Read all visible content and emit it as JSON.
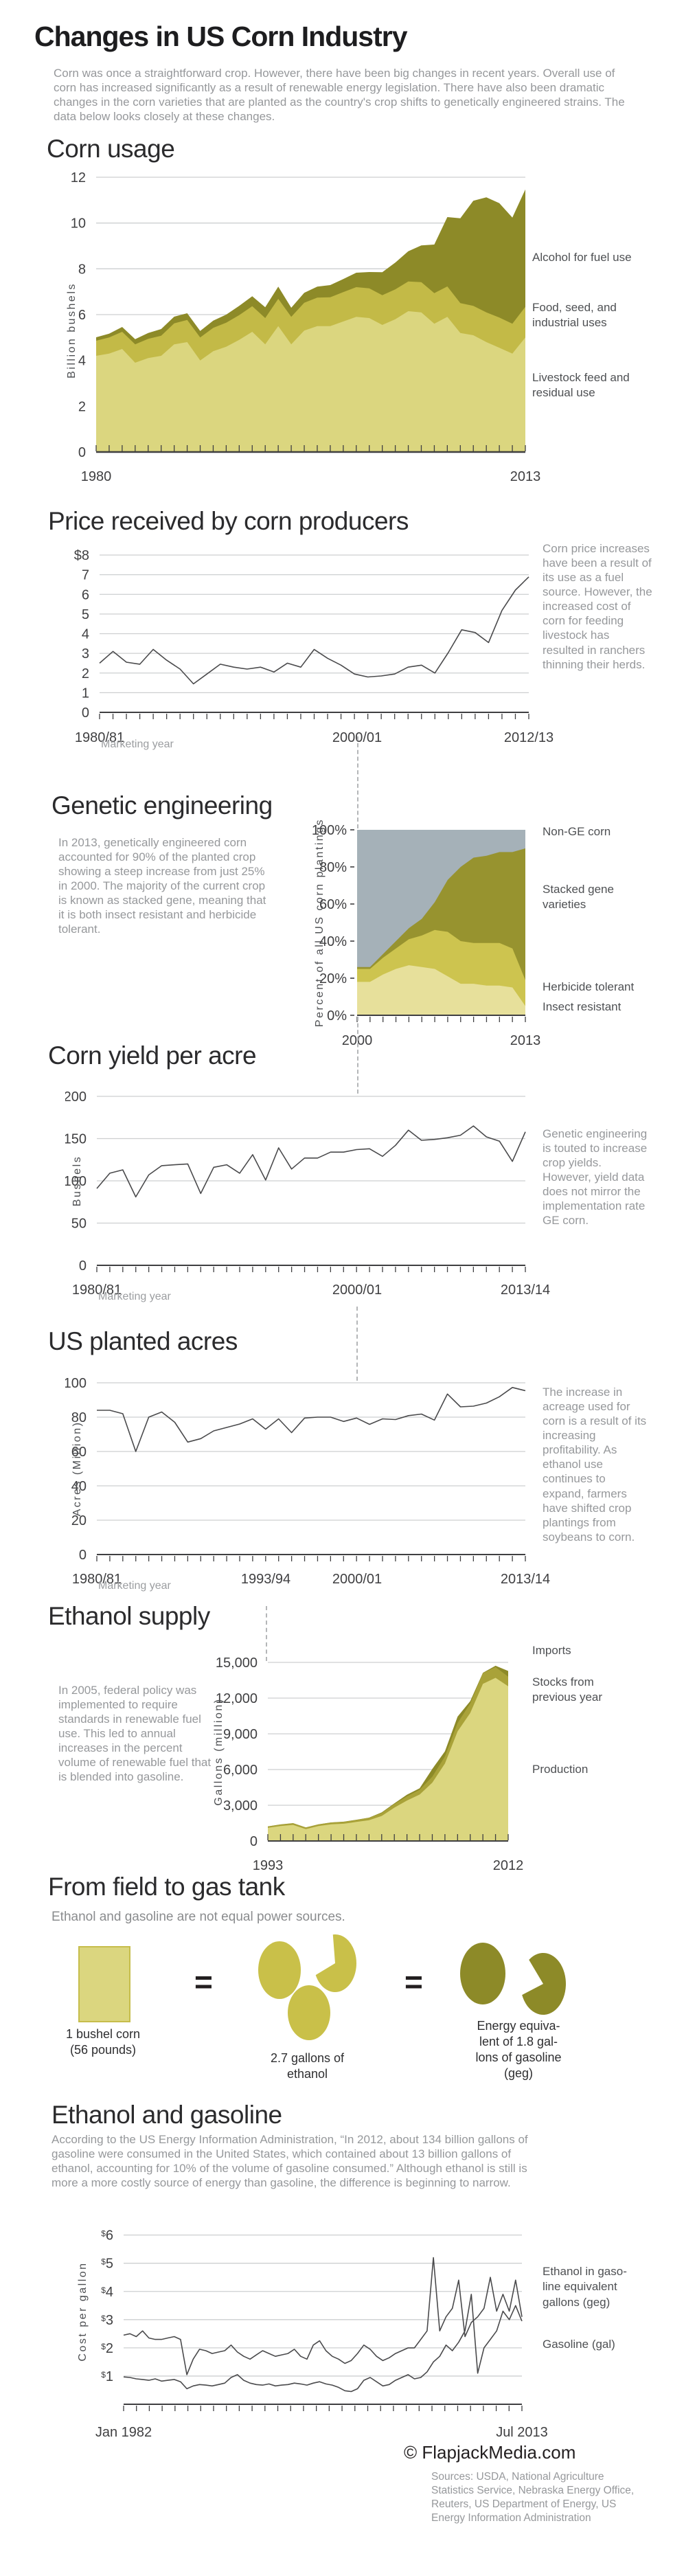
{
  "page": {
    "title": "Changes in US Corn Industry",
    "intro": "Corn was once a straightforward crop. However, there have been big changes in recent years. Overall use of corn has increased significantly as a result of renewable energy legislation. There have also been dramatic changes in the corn varieties that are planted as the country's crop shifts to genetically engineered strains. The data below looks closely at these changes."
  },
  "colors": {
    "olive_dark": "#8d8a28",
    "olive_mid": "#c3ba47",
    "olive_light": "#dbd67f",
    "ge_light": "#e7e09b",
    "ge_mid": "#cdc44f",
    "ge_dark": "#97932f",
    "non_ge_blue": "#a5b1b8",
    "line": "#414042",
    "grid": "#cdcfd0",
    "text_gray": "#96989b",
    "text_dark": "#2b2b2d"
  },
  "sections": {
    "usage": {
      "heading": "Corn usage",
      "legend_alcohol": "Alcohol for fuel use",
      "legend_food": "Food, seed, and\nindustrial uses",
      "legend_livestock": "Livestock feed and\nresidual use"
    },
    "price": {
      "heading": "Price received by corn producers",
      "note": "Corn price increases have been a result of its use as a fuel source. However, the increased cost of corn for feeding livestock has resulted in ranchers thinning their herds."
    },
    "ge": {
      "heading": "Genetic engineering",
      "note": "In 2013, genetically engineered corn accounted for 90% of the planted crop showing a steep increase from just 25% in 2000. The majority of the current crop is known as stacked gene, meaning that it is both insect resistant and herbicide tolerant.",
      "legend_non_ge": "Non-GE corn",
      "legend_stacked": "Stacked gene\nvarieties",
      "legend_herbicide": "Herbicide tolerant",
      "legend_insect": "Insect resistant"
    },
    "yield": {
      "heading": "Corn yield per acre",
      "note": "Genetic engineering is touted to increase crop yields. However, yield data does not mirror the implementation rate GE corn."
    },
    "acres": {
      "heading": "US planted acres",
      "note": "The increase in acreage used for corn is a result of its increasing profitability. As ethanol use continues to expand, farmers have shifted crop plantings from soybeans to corn."
    },
    "ethanol": {
      "heading": "Ethanol supply",
      "note": "In 2005, federal policy was implemented to require standards in renewable fuel use. This led to annual increases in the percent volume of renewable fuel that is blended into gasoline.",
      "legend_imports": "Imports",
      "legend_stocks": "Stocks from\nprevious year",
      "legend_production": "Production"
    },
    "field": {
      "heading": "From field to gas tank",
      "subtitle": "Ethanol and gasoline are not equal power sources.",
      "equals": "=",
      "items": [
        {
          "icon": "corn-bushel-icon",
          "label": "1 bushel corn\n(56 pounds)"
        },
        {
          "icon": "ethanol-drops-icon",
          "label": "2.7 gallons of\nethanol"
        },
        {
          "icon": "gasoline-drops-icon",
          "label": "Energy equiva-\nlent of 1.8 gal-\nlons of gasoline\n(geg)"
        }
      ]
    },
    "gas": {
      "heading": "Ethanol and gasoline",
      "note": "According to the US Energy Information Administration, “In 2012, about 134 billion gallons of gasoline were consumed in the United States, which contained about 13 billion gallons of ethanol, accounting for 10% of the volume of gasoline consumed.” Although ethanol is still is more a more costly source of energy than gasoline, the difference is beginning to narrow.",
      "legend_ethanol": "Ethanol in gaso-\nline equivalent\ngallons (geg)",
      "legend_gasoline": "Gasoline (gal)"
    }
  },
  "footer": {
    "credit": "© FlapjackMedia.com",
    "sources": "Sources: USDA, National Agriculture Statistics Service, Nebraska Energy Office, Reuters, US Department of Energy, US Energy Information Administration"
  },
  "chart_data": [
    {
      "id": "usage",
      "type": "area",
      "title": "Corn usage",
      "ylabel": "Billion bushels",
      "ylim": [
        0,
        12
      ],
      "yticks": [
        "0",
        "2",
        "4",
        "6",
        "8",
        "10",
        "12"
      ],
      "x_start": 1980,
      "x_end": 2013,
      "x_labels": [
        "1980",
        "2013"
      ],
      "stacked": true,
      "fills": [
        "#dbd67f",
        "#c3ba47",
        "#8d8a28"
      ],
      "series": [
        {
          "name": "Livestock feed and residual use",
          "values": [
            4.2,
            4.3,
            4.5,
            3.9,
            4.1,
            4.2,
            4.7,
            4.8,
            4.0,
            4.4,
            4.6,
            4.9,
            5.25,
            4.7,
            5.5,
            4.7,
            5.3,
            5.5,
            5.5,
            5.7,
            5.9,
            5.85,
            5.55,
            5.8,
            6.15,
            6.1,
            5.6,
            5.9,
            5.2,
            5.1,
            4.8,
            4.55,
            4.3,
            5.0
          ]
        },
        {
          "name": "Food, seed, and industrial uses",
          "values": [
            0.66,
            0.7,
            0.75,
            0.8,
            0.84,
            0.88,
            0.92,
            0.97,
            1.0,
            1.02,
            1.05,
            1.08,
            1.12,
            1.15,
            1.19,
            1.2,
            1.22,
            1.24,
            1.26,
            1.28,
            1.3,
            1.3,
            1.3,
            1.3,
            1.3,
            1.32,
            1.34,
            1.33,
            1.3,
            1.28,
            1.3,
            1.32,
            1.3,
            1.34
          ]
        },
        {
          "name": "Alcohol for fuel use",
          "values": [
            0.15,
            0.17,
            0.21,
            0.23,
            0.26,
            0.29,
            0.29,
            0.29,
            0.29,
            0.32,
            0.35,
            0.4,
            0.43,
            0.47,
            0.53,
            0.4,
            0.43,
            0.48,
            0.53,
            0.57,
            0.63,
            0.71,
            1.0,
            1.17,
            1.32,
            1.6,
            2.12,
            3.03,
            3.71,
            4.59,
            5.02,
            5.0,
            4.64,
            5.13
          ]
        }
      ]
    },
    {
      "id": "price",
      "type": "line",
      "title": "Price received by corn producers",
      "xlabel": "Marketing year",
      "ylim": [
        0,
        8
      ],
      "yticks": [
        "0",
        "1",
        "2",
        "3",
        "4",
        "5",
        "6",
        "7",
        "$8"
      ],
      "x_start": 1980,
      "x_end": 2012,
      "x_labels": [
        "1980/81",
        "2000/01",
        "2012/13"
      ],
      "values": [
        2.5,
        3.1,
        2.55,
        2.45,
        3.2,
        2.65,
        2.2,
        1.45,
        1.95,
        2.45,
        2.3,
        2.2,
        2.3,
        2.05,
        2.5,
        2.3,
        3.2,
        2.75,
        2.4,
        1.95,
        1.8,
        1.85,
        1.95,
        2.3,
        2.4,
        2.0,
        3.04,
        4.2,
        4.06,
        3.55,
        5.18,
        6.22,
        6.89
      ]
    },
    {
      "id": "ge",
      "type": "area",
      "title": "Genetic engineering",
      "ylabel": "Percent of all US corn plantings",
      "ylim": [
        0,
        100
      ],
      "yticks": [
        "0%",
        "20%",
        "40%",
        "60%",
        "80%",
        "100%"
      ],
      "x_start": 2000,
      "x_end": 2013,
      "x_labels": [
        "2000",
        "2013"
      ],
      "stacked": true,
      "fills": [
        "#e7e09b",
        "#cdc44f",
        "#97932f",
        "#a5b1b8"
      ],
      "series": [
        {
          "name": "Insect resistant",
          "values": [
            18,
            18,
            22,
            25,
            27,
            26,
            25,
            21,
            17,
            17,
            16,
            16,
            15,
            5
          ]
        },
        {
          "name": "Herbicide tolerant",
          "values": [
            7,
            7,
            9,
            11,
            14,
            17,
            21,
            24,
            23,
            22,
            23,
            23,
            21,
            14
          ]
        },
        {
          "name": "Stacked gene varieties",
          "values": [
            1,
            1,
            2,
            4,
            6,
            9,
            15,
            28,
            40,
            46,
            47,
            49,
            52,
            71
          ]
        },
        {
          "name": "Non-GE corn",
          "values": [
            74,
            74,
            67,
            60,
            53,
            48,
            39,
            27,
            20,
            15,
            14,
            12,
            12,
            10
          ]
        }
      ]
    },
    {
      "id": "yield",
      "type": "line",
      "title": "Corn yield per acre",
      "ylabel": "Bushels",
      "xlabel": "Marketing year",
      "ylim": [
        0,
        200
      ],
      "yticks": [
        "0",
        "50",
        "100",
        "150",
        "200"
      ],
      "x_start": 1980,
      "x_end": 2013,
      "x_labels": [
        "1980/81",
        "2000/01",
        "2013/14"
      ],
      "values": [
        91,
        109,
        113,
        81,
        107,
        118,
        119,
        120,
        85,
        116,
        119,
        109,
        131,
        101,
        139,
        114,
        127,
        127,
        134,
        134,
        137,
        138,
        129,
        142,
        160,
        148,
        149,
        151,
        154,
        165,
        152,
        147,
        123,
        158
      ]
    },
    {
      "id": "acres",
      "type": "line",
      "title": "US planted acres",
      "ylabel": "Acres (Million)",
      "xlabel": "Marketing year",
      "ylim": [
        0,
        100
      ],
      "yticks": [
        "0",
        "20",
        "40",
        "60",
        "80",
        "100"
      ],
      "x_start": 1980,
      "x_end": 2013,
      "x_labels": [
        "1980/81",
        "1993/94",
        "2000/01",
        "2013/14"
      ],
      "values": [
        84,
        84,
        82,
        60,
        80,
        83,
        77,
        65.5,
        67.5,
        72,
        74,
        76,
        79,
        73,
        79,
        71,
        79.5,
        80,
        80,
        77.5,
        79.5,
        75.8,
        79,
        78.6,
        80.9,
        81.8,
        78.3,
        93.5,
        86,
        86.4,
        88.2,
        91.9,
        97.3,
        95.4
      ]
    },
    {
      "id": "ethanol",
      "type": "area",
      "title": "Ethanol supply",
      "ylabel": "Gallons (million)",
      "ylim": [
        0,
        15000
      ],
      "yticks": [
        "0",
        "3,000",
        "6,000",
        "9,000",
        "12,000",
        "15,000"
      ],
      "x_start": 1993,
      "x_end": 2012,
      "x_labels": [
        "1993",
        "2012"
      ],
      "stacked": true,
      "fills": [
        "#dbd67f",
        "#a9a239",
        "#8d8a28"
      ],
      "series": [
        {
          "name": "Production",
          "values": [
            1100,
            1250,
            1350,
            1000,
            1250,
            1400,
            1450,
            1600,
            1750,
            2100,
            2800,
            3400,
            3900,
            4900,
            6500,
            9200,
            10750,
            13200,
            13700,
            13000
          ]
        },
        {
          "name": "Stocks from previous year",
          "values": [
            120,
            130,
            140,
            130,
            140,
            150,
            160,
            170,
            200,
            250,
            300,
            350,
            400,
            500,
            600,
            700,
            800,
            900,
            900,
            800
          ]
        },
        {
          "name": "Imports",
          "values": [
            10,
            10,
            10,
            10,
            10,
            10,
            10,
            10,
            10,
            50,
            60,
            140,
            130,
            650,
            430,
            540,
            190,
            30,
            120,
            480
          ]
        }
      ]
    },
    {
      "id": "cost",
      "type": "line",
      "title": "Ethanol and gasoline",
      "ylabel": "Cost per gallon",
      "ylim": [
        0,
        6.6
      ],
      "yticks": [
        "$1",
        "$2",
        "$3",
        "$4",
        "$5",
        "$6"
      ],
      "x_start": 1982,
      "x_end": 2013.5,
      "x_step_years": 0.5,
      "x_labels": [
        "Jan 1982",
        "Jul 2013"
      ],
      "series": [
        {
          "name": "Ethanol in gasoline equivalent gallons (geg)",
          "values": [
            2.45,
            2.5,
            2.4,
            2.6,
            2.35,
            2.3,
            2.3,
            2.35,
            2.4,
            2.3,
            1.05,
            1.6,
            1.95,
            1.9,
            1.8,
            1.85,
            1.9,
            2.1,
            1.85,
            1.7,
            1.6,
            1.75,
            1.9,
            1.8,
            1.7,
            1.75,
            1.8,
            1.95,
            1.7,
            1.6,
            2.1,
            2.25,
            1.9,
            1.7,
            1.6,
            1.45,
            1.55,
            1.8,
            2.1,
            1.95,
            1.7,
            1.55,
            1.65,
            1.8,
            1.9,
            2.0,
            2.0,
            2.3,
            2.6,
            5.2,
            2.6,
            3.1,
            3.4,
            4.4,
            2.4,
            2.9,
            3.1,
            3.4,
            4.5,
            3.3,
            3.9,
            3.3,
            4.4,
            3.1
          ]
        },
        {
          "name": "Gasoline (gal)",
          "values": [
            0.97,
            0.95,
            0.9,
            0.88,
            0.85,
            0.9,
            0.82,
            0.85,
            0.88,
            0.8,
            0.55,
            0.65,
            0.7,
            0.68,
            0.65,
            0.7,
            0.75,
            0.95,
            1.05,
            0.85,
            0.75,
            0.7,
            0.68,
            0.72,
            0.65,
            0.68,
            0.7,
            0.75,
            0.72,
            0.68,
            0.75,
            0.8,
            0.72,
            0.68,
            0.6,
            0.48,
            0.45,
            0.55,
            0.85,
            0.95,
            0.8,
            0.65,
            0.7,
            0.85,
            0.95,
            1.05,
            0.9,
            0.95,
            1.15,
            1.5,
            1.7,
            2.1,
            1.9,
            2.2,
            2.6,
            3.9,
            1.1,
            2.0,
            2.3,
            2.6,
            3.3,
            3.0,
            3.5,
            2.95
          ]
        }
      ]
    }
  ]
}
